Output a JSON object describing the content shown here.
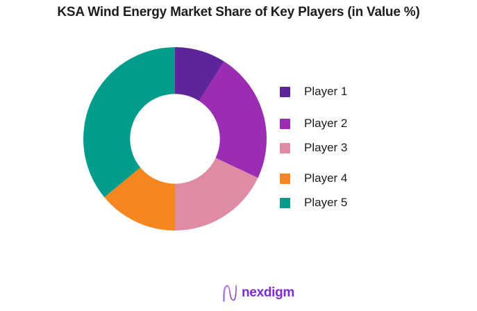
{
  "header": {
    "title": "KSA Wind Energy Market Share of Key Players (in Value %)"
  },
  "chart_data": {
    "type": "pie",
    "subtype": "donut",
    "hole_ratio": 0.49,
    "title": "KSA Wind Energy Market Share of Key Players (in Value %)",
    "categories": [
      "Player 1",
      "Player 2",
      "Player 3",
      "Player 4",
      "Player 5"
    ],
    "values": [
      9,
      23,
      18,
      14,
      36
    ],
    "unit": "%",
    "values_note": "shares estimated from arc angles; numeric labels are not displayed on the chart",
    "colors": [
      "#5e2499",
      "#9b2db3",
      "#df8ba3",
      "#f6861f",
      "#019c8c"
    ],
    "start_angle_deg": 0,
    "direction": "clockwise",
    "legend_position": "right",
    "data_labels_shown": false
  },
  "legend": {
    "items": [
      {
        "label": "Player 1",
        "color": "#5e2499"
      },
      {
        "label": "Player 2",
        "color": "#9b2db3"
      },
      {
        "label": "Player 3",
        "color": "#df8ba3"
      },
      {
        "label": "Player 4",
        "color": "#f6861f"
      },
      {
        "label": "Player 5",
        "color": "#019c8c"
      }
    ]
  },
  "footer": {
    "brand": "nexdigm",
    "brand_color": "#7a2bd6",
    "logo_icon": "nexdigm-wave-n-icon"
  }
}
